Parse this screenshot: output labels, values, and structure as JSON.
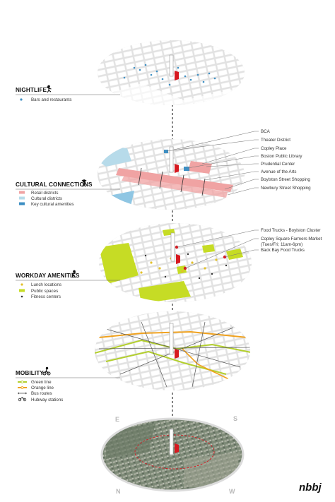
{
  "colors": {
    "map_bg": "#e6e6e6",
    "block": "#ffffff",
    "water": "#8fc6e3",
    "building_red": "#d71920",
    "retail": "#f0a3a3",
    "cultural": "#b7dbea",
    "cultural_key": "#3e8fc3",
    "park_green": "#c6dc25",
    "lunch": "#e2c12a",
    "fitness": "#333333",
    "green_line": "#b3cf2d",
    "orange_line": "#f0a21f",
    "bus": "#555555"
  },
  "layers": {
    "nightlife": {
      "title": "NIGHTLIFE",
      "icon": "dancer-icon",
      "legend": [
        {
          "label": "Bars and restaurants",
          "swatch": "dot",
          "color": "#3e8fc3"
        }
      ]
    },
    "cultural": {
      "title": "CULTURAL CONNECTIONS",
      "icon": "juggler-icon",
      "legend": [
        {
          "label": "Retail districts",
          "swatch": "rect",
          "color": "#f0a3a3"
        },
        {
          "label": "Cultural districts",
          "swatch": "rect",
          "color": "#b7dbea"
        },
        {
          "label": "Key cultural amenities",
          "swatch": "rect",
          "color": "#3e8fc3"
        }
      ],
      "callouts": [
        "BCA",
        "Theater District",
        "Copley Place",
        "Boston Public Library",
        "Prudential Center",
        "Avenue of the Arts",
        "Boylston Street Shopping",
        "Newbury Street Shopping"
      ]
    },
    "workday": {
      "title": "WORKDAY AMENITIES",
      "icon": "runner-icon",
      "legend": [
        {
          "label": "Lunch locations",
          "swatch": "dot",
          "color": "#e2c12a"
        },
        {
          "label": "Public spaces",
          "swatch": "rect",
          "color": "#c6dc25"
        },
        {
          "label": "Fitness centers",
          "swatch": "dot",
          "color": "#333333"
        }
      ],
      "callouts": [
        "Food Trucks - Boylston Cluster",
        "Copley Square Farmers Market",
        "(Tues/Fri; 11am-6pm)",
        "Back Bay Food Trucks"
      ]
    },
    "mobility": {
      "title": "MOBILITY",
      "icon": "cyclist-icon",
      "legend": [
        {
          "label": "Green line",
          "swatch": "line",
          "color": "#b3cf2d"
        },
        {
          "label": "Orange line",
          "swatch": "line",
          "color": "#f0a21f"
        },
        {
          "label": "Bus routes",
          "swatch": "line",
          "color": "#555555"
        },
        {
          "label": "Hubway stations",
          "swatch": "bike",
          "color": "#333333"
        }
      ]
    },
    "aerial": {
      "compass": [
        "N",
        "S",
        "E",
        "W"
      ]
    }
  },
  "logo": "nbbj"
}
